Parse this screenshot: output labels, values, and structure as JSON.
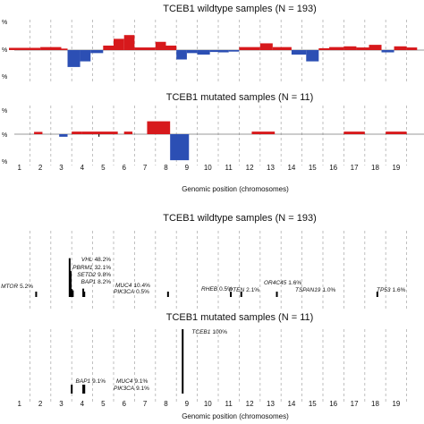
{
  "colors": {
    "gain": "#d7191c",
    "loss": "#2c4fb4",
    "sep": "#b0b0b0",
    "baseline": "#777777",
    "mut": "#000000"
  },
  "chart_data": [
    {
      "type": "area",
      "title": "TCEB1 wildtype samples (N = 193)",
      "x_unit": "chromosome",
      "y_tick_labels": [
        "%",
        "%",
        "%"
      ],
      "segments": [
        {
          "start": 0.0,
          "end": 1.5,
          "value": 6
        },
        {
          "start": 1.5,
          "end": 2.5,
          "value": 8
        },
        {
          "start": 2.5,
          "end": 2.8,
          "value": 4
        },
        {
          "start": 2.8,
          "end": 3.4,
          "value": -45
        },
        {
          "start": 3.4,
          "end": 3.9,
          "value": -30
        },
        {
          "start": 3.9,
          "end": 4.5,
          "value": -8
        },
        {
          "start": 4.5,
          "end": 5.0,
          "value": 12
        },
        {
          "start": 5.0,
          "end": 5.5,
          "value": 30
        },
        {
          "start": 5.5,
          "end": 6.0,
          "value": 40
        },
        {
          "start": 6.0,
          "end": 7.0,
          "value": 7
        },
        {
          "start": 7.0,
          "end": 7.5,
          "value": 22
        },
        {
          "start": 7.5,
          "end": 8.0,
          "value": 12
        },
        {
          "start": 8.0,
          "end": 8.5,
          "value": -25
        },
        {
          "start": 8.5,
          "end": 9.0,
          "value": -8
        },
        {
          "start": 9.0,
          "end": 9.6,
          "value": -12
        },
        {
          "start": 9.6,
          "end": 10.0,
          "value": -5
        },
        {
          "start": 10.0,
          "end": 10.5,
          "value": -6
        },
        {
          "start": 10.5,
          "end": 11.0,
          "value": -4
        },
        {
          "start": 11.0,
          "end": 12.0,
          "value": 8
        },
        {
          "start": 12.0,
          "end": 12.6,
          "value": 18
        },
        {
          "start": 12.6,
          "end": 13.5,
          "value": 8
        },
        {
          "start": 13.5,
          "end": 14.2,
          "value": -12
        },
        {
          "start": 14.2,
          "end": 14.8,
          "value": -30
        },
        {
          "start": 14.8,
          "end": 15.3,
          "value": 5
        },
        {
          "start": 15.3,
          "end": 16.0,
          "value": 8
        },
        {
          "start": 16.0,
          "end": 16.6,
          "value": 10
        },
        {
          "start": 16.6,
          "end": 17.2,
          "value": 7
        },
        {
          "start": 17.2,
          "end": 17.8,
          "value": 14
        },
        {
          "start": 17.8,
          "end": 18.4,
          "value": -6
        },
        {
          "start": 18.4,
          "end": 19.0,
          "value": 10
        },
        {
          "start": 19.0,
          "end": 19.5,
          "value": 7
        }
      ]
    },
    {
      "type": "area",
      "title": "TCEB1 mutated samples (N = 11)",
      "x_unit": "chromosome",
      "y_tick_labels": [
        "%",
        "%",
        "%"
      ],
      "segments": [
        {
          "start": 1.2,
          "end": 1.6,
          "value": 8
        },
        {
          "start": 2.4,
          "end": 2.8,
          "value": -9
        },
        {
          "start": 3.0,
          "end": 3.5,
          "value": 9
        },
        {
          "start": 3.5,
          "end": 5.2,
          "value": 9
        },
        {
          "start": 5.5,
          "end": 5.9,
          "value": 9
        },
        {
          "start": 6.6,
          "end": 7.7,
          "value": 45
        },
        {
          "start": 7.7,
          "end": 8.6,
          "value": -91
        },
        {
          "start": 11.6,
          "end": 12.7,
          "value": 9
        },
        {
          "start": 16.0,
          "end": 17.0,
          "value": 9
        },
        {
          "start": 18.0,
          "end": 19.0,
          "value": 9
        }
      ],
      "points": [
        {
          "x": 4.3,
          "value": -9
        }
      ]
    },
    {
      "type": "bar",
      "title": "TCEB1 wildtype samples (N = 193)",
      "x_unit": "chromosome",
      "mutations": [
        {
          "gene": "MTOR",
          "pct": "5.2%",
          "x": 1.3,
          "value": 5.2
        },
        {
          "gene": "VHL",
          "pct": "48.2%",
          "x": 2.9,
          "value": 48.2
        },
        {
          "gene": "PBRM1",
          "pct": "32.1%",
          "x": 2.95,
          "value": 32.1
        },
        {
          "gene": "SETD2",
          "pct": "9.8%",
          "x": 3.0,
          "value": 9.8
        },
        {
          "gene": "BAP1",
          "pct": "8.2%",
          "x": 3.05,
          "value": 8.2
        },
        {
          "gene": "MUC4",
          "pct": "10.4%",
          "x": 3.55,
          "value": 10.4
        },
        {
          "gene": "PIK3CA",
          "pct": "0.5%",
          "x": 3.6,
          "value": 0.5
        },
        {
          "gene": "RHEB",
          "pct": "0.5%",
          "x": 7.6,
          "value": 0.5
        },
        {
          "gene": "PTEN",
          "pct": "2.1%",
          "x": 10.6,
          "value": 2.1
        },
        {
          "gene": "OR4C45",
          "pct": "1.6%",
          "x": 11.1,
          "value": 1.6
        },
        {
          "gene": "TSPAN19",
          "pct": "1.0%",
          "x": 12.8,
          "value": 1.0
        },
        {
          "gene": "TP53",
          "pct": "1.6%",
          "x": 17.6,
          "value": 1.6
        }
      ]
    },
    {
      "type": "bar",
      "title": "TCEB1 mutated samples (N = 11)",
      "x_unit": "chromosome",
      "mutations": [
        {
          "gene": "TCEB1",
          "pct": "100%",
          "x": 8.3,
          "value": 100
        },
        {
          "gene": "BAP1",
          "pct": "9.1%",
          "x": 3.0,
          "value": 9.1
        },
        {
          "gene": "MUC4",
          "pct": "9.1%",
          "x": 3.55,
          "value": 9.1
        },
        {
          "gene": "PIK3CA",
          "pct": "9.1%",
          "x": 3.6,
          "value": 9.1
        }
      ]
    }
  ],
  "chromosome_ticks": [
    "1",
    "2",
    "3",
    "4",
    "5",
    "6",
    "7",
    "8",
    "9",
    "10",
    "11",
    "12",
    "13",
    "14",
    "15",
    "16",
    "17",
    "18",
    "19"
  ],
  "xlabel": "Genomic position (chromosomes)"
}
